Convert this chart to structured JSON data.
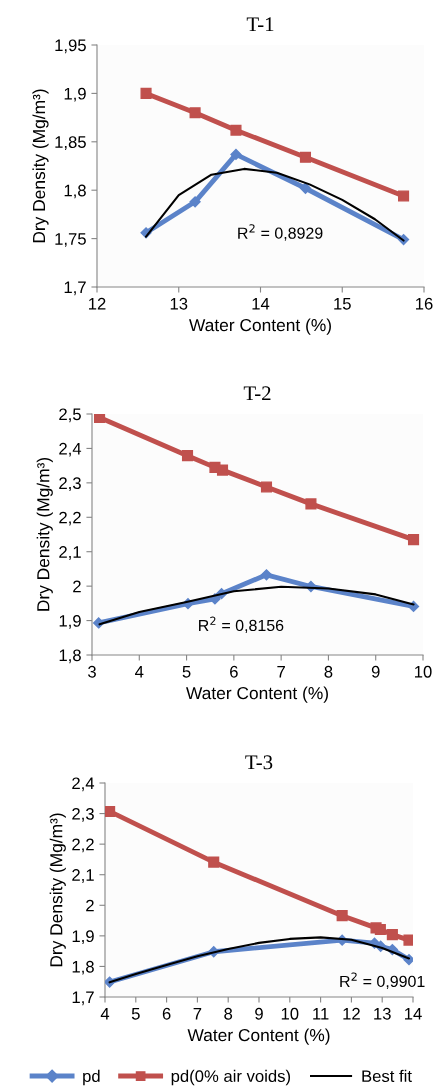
{
  "chart_data": [
    {
      "type": "line",
      "title": "T-1",
      "xlabel": "Water Content (%)",
      "ylabel": "Dry Density (Mg/m³)",
      "xlim": [
        12,
        16
      ],
      "xticks": [
        12,
        13,
        14,
        15,
        16
      ],
      "ylim": [
        1.7,
        1.95
      ],
      "yticks": [
        {
          "value": 1.7,
          "label": "1,7"
        },
        {
          "value": 1.75,
          "label": "1,75"
        },
        {
          "value": 1.8,
          "label": "1,8"
        },
        {
          "value": 1.85,
          "label": "1,85"
        },
        {
          "value": 1.9,
          "label": "1,9"
        },
        {
          "value": 1.95,
          "label": "1,95"
        }
      ],
      "grid": false,
      "annotations": [
        "R$^{2}$ = 0,8929"
      ],
      "series": [
        {
          "color": "#c0504d",
          "marker": "square",
          "x": [
            12.6,
            13.2,
            13.7,
            14.55,
            15.75
          ],
          "values": [
            1.9,
            1.88,
            1.862,
            1.834,
            1.794
          ]
        },
        {
          "color": "#5b83c9",
          "marker": "diamond",
          "x": [
            12.6,
            13.2,
            13.7,
            14.55,
            15.75
          ],
          "values": [
            1.756,
            1.788,
            1.837,
            1.802,
            1.749
          ]
        },
        {
          "color": "#000000",
          "marker": "none",
          "x": [
            12.6,
            13.0,
            13.4,
            13.8,
            14.2,
            14.6,
            15.0,
            15.4,
            15.75
          ],
          "values": [
            1.752,
            1.795,
            1.816,
            1.822,
            1.818,
            1.806,
            1.79,
            1.77,
            1.748
          ]
        }
      ]
    },
    {
      "type": "line",
      "title": "T-2",
      "xlabel": "Water Content (%)",
      "ylabel": "Dry Density (Mg/m³)",
      "xlim": [
        3,
        10
      ],
      "xticks": [
        3,
        4,
        5,
        6,
        7,
        8,
        9,
        10
      ],
      "ylim": [
        1.8,
        2.5
      ],
      "yticks": [
        {
          "value": 1.8,
          "label": "1,8"
        },
        {
          "value": 1.9,
          "label": "1,9"
        },
        2,
        {
          "value": 2.1,
          "label": "2,1"
        },
        {
          "value": 2.2,
          "label": "2,2"
        },
        {
          "value": 2.3,
          "label": "2,3"
        },
        {
          "value": 2.4,
          "label": "2,4"
        },
        {
          "value": 2.5,
          "label": "2,5"
        }
      ],
      "grid": false,
      "annotations": [
        "R$^{2}$ = 0,8156"
      ],
      "series": [
        {
          "color": "#c0504d",
          "marker": "square",
          "x": [
            3.16,
            5.02,
            5.6,
            5.76,
            6.69,
            7.63,
            9.8
          ],
          "values": [
            2.49,
            2.379,
            2.345,
            2.337,
            2.288,
            2.239,
            2.135
          ]
        },
        {
          "color": "#5b83c9",
          "marker": "diamond",
          "x": [
            3.14,
            5.03,
            5.6,
            5.74,
            6.69,
            7.63,
            9.8
          ],
          "values": [
            1.893,
            1.949,
            1.963,
            1.978,
            2.033,
            1.999,
            1.941
          ]
        },
        {
          "color": "#000000",
          "marker": "none",
          "x": [
            3.16,
            4,
            5,
            6,
            7,
            8,
            9,
            9.8
          ],
          "values": [
            1.889,
            1.925,
            1.954,
            1.985,
            1.998,
            1.993,
            1.976,
            1.947
          ]
        }
      ]
    },
    {
      "type": "line",
      "title": "T-3",
      "xlabel": "Water Content (%)",
      "ylabel": "Dry Density (Mg/m³)",
      "xlim": [
        4,
        14
      ],
      "xticks": [
        4,
        5,
        6,
        7,
        8,
        9,
        10,
        11,
        12,
        13,
        14
      ],
      "ylim": [
        1.7,
        2.4
      ],
      "yticks": [
        {
          "value": 1.7,
          "label": "1,7"
        },
        {
          "value": 1.8,
          "label": "1,8"
        },
        {
          "value": 1.9,
          "label": "1,9"
        },
        2,
        {
          "value": 2.1,
          "label": "2,1"
        },
        {
          "value": 2.2,
          "label": "2,2"
        },
        {
          "value": 2.3,
          "label": "2,3"
        },
        {
          "value": 2.4,
          "label": "2,4"
        }
      ],
      "grid": false,
      "legend": "bottom",
      "annotations": [
        "R$^{2}$ = 0,9901"
      ],
      "series": [
        {
          "name": "pd",
          "color": "#5b83c9",
          "marker": "diamond",
          "x": [
            4.15,
            7.53,
            11.7,
            12.75,
            12.95,
            13.33,
            13.87
          ],
          "values": [
            1.749,
            1.848,
            1.886,
            1.876,
            1.866,
            1.855,
            1.822
          ]
        },
        {
          "name": "pd(0% air voids)",
          "color": "#c0504d",
          "marker": "square",
          "x": [
            4.15,
            7.53,
            11.7,
            12.8,
            12.94,
            13.33,
            13.87
          ],
          "values": [
            2.307,
            2.141,
            1.966,
            1.926,
            1.921,
            1.904,
            1.886
          ]
        },
        {
          "name": "Best fit",
          "color": "#000000",
          "marker": "none",
          "x": [
            4.15,
            5,
            6,
            7,
            8,
            9,
            10,
            11,
            12,
            13,
            13.87
          ],
          "values": [
            1.748,
            1.775,
            1.805,
            1.833,
            1.857,
            1.877,
            1.89,
            1.895,
            1.887,
            1.86,
            1.826
          ]
        }
      ]
    }
  ]
}
